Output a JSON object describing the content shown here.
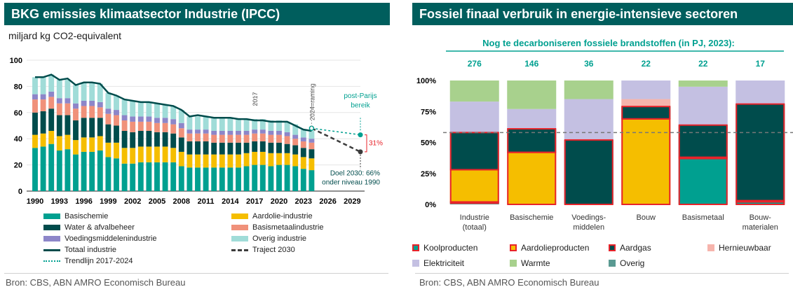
{
  "colors": {
    "title_bg": "#005e5d",
    "basischemie": "#00a090",
    "aardolie": "#f5be00",
    "water": "#004c4c",
    "basismetaal": "#f0917a",
    "voeding": "#8d86c9",
    "overig": "#a0dcd8",
    "totaal": "#004c4c",
    "traject": "#3c3c3c",
    "trend": "#00a090",
    "koolproducten": "#00a090",
    "aardolieproducten": "#f5be00",
    "aardgas": "#004c4c",
    "hernieuwbaar": "#f6b4ac",
    "elektriciteit": "#c4c0e2",
    "warmte": "#a8d18d",
    "overig_r": "#5a9a92",
    "border_red": "#e8232a",
    "ref_line": "#777777"
  },
  "left": {
    "title": "BKG emissies klimaatsector Industrie (IPCC)",
    "unit": "miljard kg CO2-equivalent",
    "source": "Bron: CBS, ABN AMRO Economisch Bureau",
    "annotations": {
      "year_2017": "2017",
      "raming": "2024=raming",
      "post_parijs_1": "post-Parijs",
      "post_parijs_2": "bereik",
      "pct": "31%",
      "doel_1": "Doel 2030: 66%",
      "doel_2": "onder niveau 1990"
    },
    "legend": [
      {
        "key": "basischemie",
        "label": "Basischemie",
        "kind": "bar"
      },
      {
        "key": "aardolie",
        "label": "Aardolie-industrie",
        "kind": "bar"
      },
      {
        "key": "water",
        "label": "Water & afvalbeheer",
        "kind": "bar"
      },
      {
        "key": "basismetaal",
        "label": "Basismetaalindustrie",
        "kind": "bar"
      },
      {
        "key": "voeding",
        "label": "Voedingsmiddelenindustrie",
        "kind": "bar"
      },
      {
        "key": "overig",
        "label": "Overig industrie",
        "kind": "bar"
      },
      {
        "key": "totaal",
        "label": "Totaal industrie",
        "kind": "line"
      },
      {
        "key": "traject",
        "label": "Traject 2030",
        "kind": "dash"
      },
      {
        "key": "trend",
        "label": "Trendlijn 2017-2024",
        "kind": "dotted"
      }
    ]
  },
  "right": {
    "title": "Fossiel finaal verbruik in energie-intensieve sectoren",
    "subtitle": "Nog te decarboniseren fossiele brandstoffen (in PJ, 2023):",
    "source": "Bron: CBS, ABN AMRO Economisch Bureau",
    "legend": [
      {
        "key": "koolproducten",
        "label": "Koolproducten",
        "red_border": true
      },
      {
        "key": "aardolieproducten",
        "label": "Aardolieproducten",
        "red_border": true
      },
      {
        "key": "aardgas",
        "label": "Aardgas",
        "red_border": true
      },
      {
        "key": "hernieuwbaar",
        "label": "Hernieuwbaar",
        "red_border": false
      },
      {
        "key": "elektriciteit",
        "label": "Elektriciteit",
        "red_border": false
      },
      {
        "key": "warmte",
        "label": "Warmte",
        "red_border": false
      },
      {
        "key": "overig_r",
        "label": "Overig",
        "red_border": false
      }
    ]
  },
  "chart_data": [
    {
      "type": "bar",
      "stacked": true,
      "title": "BKG emissies klimaatsector Industrie (IPCC)",
      "ylabel": "miljard kg CO2-equivalent",
      "ylim": [
        0,
        100
      ],
      "yticks": [
        0,
        20,
        40,
        60,
        80,
        100
      ],
      "xlim": [
        1990,
        2030
      ],
      "xticks": [
        1990,
        1993,
        1996,
        1999,
        2002,
        2005,
        2008,
        2011,
        2014,
        2017,
        2020,
        2023,
        2026,
        2029
      ],
      "categories": [
        1990,
        1991,
        1992,
        1993,
        1994,
        1995,
        1996,
        1997,
        1998,
        1999,
        2000,
        2001,
        2002,
        2003,
        2004,
        2005,
        2006,
        2007,
        2008,
        2009,
        2010,
        2011,
        2012,
        2013,
        2014,
        2015,
        2016,
        2017,
        2018,
        2019,
        2020,
        2021,
        2022,
        2023,
        2024
      ],
      "series": [
        {
          "name": "Basischemie",
          "key": "basischemie",
          "values": [
            33,
            34,
            36,
            31,
            32,
            28,
            30,
            30,
            31,
            26,
            25,
            21,
            21,
            22,
            22,
            22,
            22,
            22,
            19,
            18,
            18,
            18,
            18,
            18,
            18,
            18,
            19,
            20,
            20,
            19,
            20,
            20,
            19,
            17,
            16
          ]
        },
        {
          "name": "Aardolie-industrie",
          "key": "aardolie",
          "values": [
            10,
            10,
            10,
            11,
            11,
            11,
            11,
            11,
            11,
            11,
            12,
            12,
            12,
            12,
            12,
            12,
            12,
            11,
            11,
            10,
            10,
            10,
            10,
            10,
            10,
            10,
            10,
            10,
            10,
            10,
            9,
            9,
            9,
            9,
            9
          ]
        },
        {
          "name": "Water & afvalbeheer",
          "key": "water",
          "values": [
            17,
            17,
            17,
            16,
            15,
            15,
            15,
            15,
            14,
            14,
            13,
            13,
            12,
            12,
            12,
            11,
            11,
            11,
            11,
            10,
            10,
            10,
            9,
            9,
            9,
            9,
            8,
            8,
            8,
            8,
            8,
            7,
            7,
            7,
            7
          ]
        },
        {
          "name": "Basismetaalindustrie",
          "key": "basismetaal",
          "values": [
            10,
            9,
            9,
            9,
            9,
            9,
            9,
            9,
            8,
            8,
            8,
            8,
            8,
            7,
            7,
            7,
            7,
            7,
            7,
            6,
            6,
            6,
            6,
            6,
            6,
            6,
            6,
            6,
            6,
            6,
            6,
            6,
            5,
            5,
            5
          ]
        },
        {
          "name": "Voedingsmiddelenindustrie",
          "key": "voeding",
          "values": [
            4,
            4,
            4,
            4,
            4,
            4,
            4,
            4,
            4,
            4,
            4,
            4,
            4,
            4,
            4,
            4,
            4,
            4,
            4,
            3,
            3,
            3,
            3,
            3,
            3,
            3,
            3,
            3,
            3,
            3,
            3,
            3,
            3,
            3,
            3
          ]
        },
        {
          "name": "Overig industrie",
          "key": "overig",
          "values": [
            13,
            13,
            13,
            14,
            14,
            14,
            14,
            14,
            14,
            12,
            11,
            12,
            12,
            11,
            11,
            11,
            10,
            10,
            10,
            10,
            10,
            10,
            10,
            10,
            10,
            9,
            9,
            8,
            8,
            8,
            8,
            8,
            8,
            6,
            6
          ]
        }
      ],
      "lines": [
        {
          "name": "Totaal industrie",
          "key": "totaal",
          "x": [
            1990,
            1991,
            1992,
            1993,
            1994,
            1995,
            1996,
            1997,
            1998,
            1999,
            2000,
            2001,
            2002,
            2003,
            2004,
            2005,
            2006,
            2007,
            2008,
            2009,
            2010,
            2011,
            2012,
            2013,
            2014,
            2015,
            2016,
            2017,
            2018,
            2019,
            2020,
            2021,
            2022,
            2023,
            2024
          ],
          "y": [
            87,
            87,
            89,
            85,
            86,
            81,
            83,
            83,
            82,
            75,
            73,
            70,
            69,
            68,
            68,
            67,
            66,
            65,
            62,
            57,
            58,
            57,
            56,
            56,
            56,
            55,
            55,
            54,
            54,
            53,
            53,
            53,
            50,
            47,
            46
          ]
        },
        {
          "name": "Traject 2030",
          "key": "traject",
          "x": [
            2024,
            2030
          ],
          "y": [
            48,
            30
          ]
        },
        {
          "name": "Trendlijn 2017-2024",
          "key": "trend",
          "x": [
            2024,
            2030
          ],
          "y": [
            48,
            43
          ]
        }
      ],
      "points": [
        {
          "key": "trend",
          "x": 2030,
          "y": 43
        },
        {
          "key": "traject",
          "x": 2030,
          "y": 30
        }
      ]
    },
    {
      "type": "bar",
      "stacked": true,
      "percent": true,
      "title": "Fossiel finaal verbruik in energie-intensieve sectoren",
      "ylim": [
        0,
        100
      ],
      "yticks": [
        "0%",
        "25%",
        "50%",
        "75%",
        "100%"
      ],
      "reference_line": 58,
      "categories": [
        "Industrie\n(totaal)",
        "Basischemie",
        "Voedings-\nmiddelen",
        "Bouw",
        "Basismetaal",
        "Bouw-\nmaterialen"
      ],
      "totals_pj": [
        "276",
        "146",
        "36",
        "22",
        "22",
        "17"
      ],
      "series": [
        {
          "name": "Overig",
          "key": "overig_r",
          "values": [
            1,
            0,
            0,
            0,
            0,
            0
          ]
        },
        {
          "name": "Koolproducten",
          "key": "koolproducten",
          "values": [
            1,
            0,
            0,
            0,
            37,
            2
          ]
        },
        {
          "name": "Aardolieproducten",
          "key": "aardolieproducten",
          "values": [
            26,
            42,
            0,
            69,
            1,
            1
          ]
        },
        {
          "name": "Aardgas",
          "key": "aardgas",
          "values": [
            30,
            19,
            52,
            10,
            26,
            78
          ]
        },
        {
          "name": "Hernieuwbaar",
          "key": "hernieuwbaar",
          "values": [
            0,
            0,
            0,
            6,
            0,
            0
          ]
        },
        {
          "name": "Elektriciteit",
          "key": "elektriciteit",
          "values": [
            25,
            16,
            33,
            15,
            31,
            19
          ]
        },
        {
          "name": "Warmte",
          "key": "warmte",
          "values": [
            17,
            23,
            15,
            0,
            5,
            0
          ]
        }
      ]
    }
  ]
}
